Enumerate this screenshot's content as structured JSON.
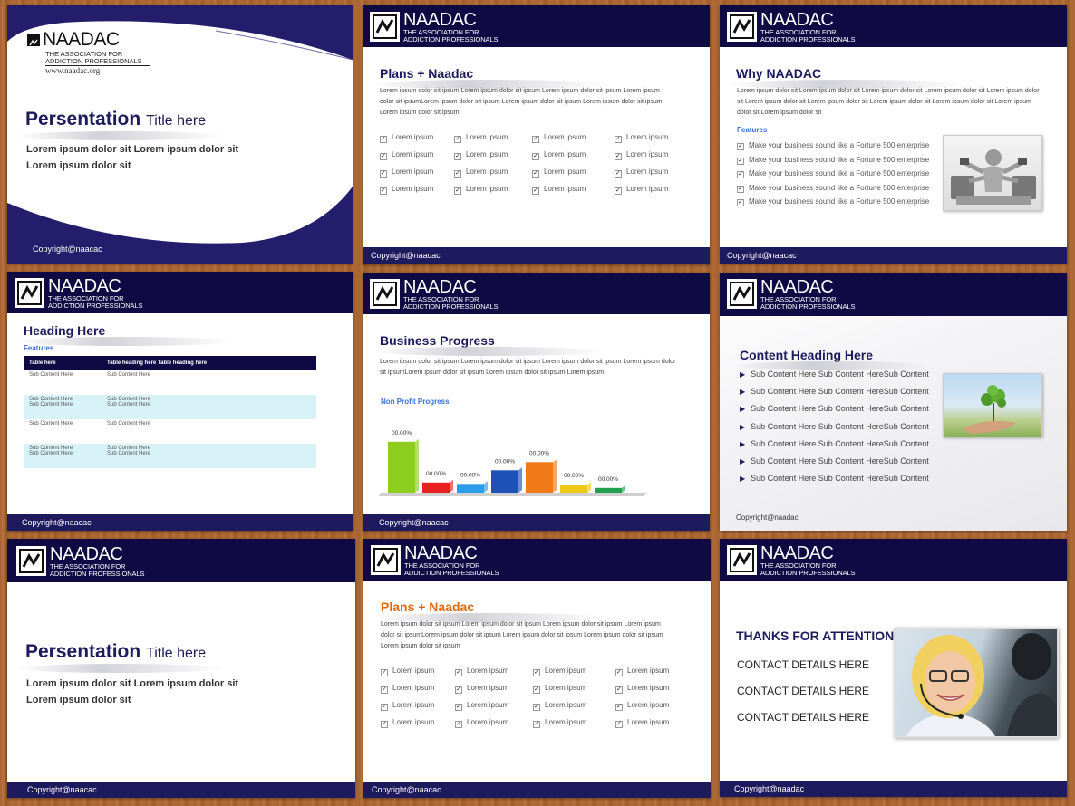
{
  "brand": {
    "name": "NAADAC",
    "tagline_1": "THE ASSOCIATION FOR",
    "tagline_2": "ADDICTION PROFESSIONALS",
    "website": "www.naadac.org"
  },
  "copyright": "Copyright@naacac",
  "copyright_alt": "Copyright@naadac",
  "colors": {
    "navy": "#0f0a44",
    "footer": "#1e1a5e",
    "orange": "#e06a10",
    "accent_blue": "#3a6fd8"
  },
  "slide1": {
    "title_bold": "Persentation",
    "title_rest": "Title here",
    "line1": "Lorem ipsum dolor sit  Lorem ipsum dolor sit",
    "line2": "Lorem ipsum dolor sit"
  },
  "slide2": {
    "title": "Plans + Naadac",
    "para": "Lorem ipsum dolor sit ipsum Lorem ipsum dolor sit ipsum Lorem ipsum dolor sit ipsum Lorem ipsum dolor sit ipsumLorem ipsum dolor sit ipsum Lorem ipsum dolor sit ipsum Lorem ipsum dolor sit ipsum Lorem ipsum dolor sit ipsum",
    "item": "Lorem ipsum"
  },
  "slide3": {
    "title": "Why NAADAC",
    "para": "Lorem ipsum dolor sit Lorem ipsum dolor sit  Lorem ipsum dolor sit Lorem ipsum dolor sit Lorem ipsum dolor sit Lorem ipsum dolor sit  Lorem ipsum dolor sit Lorem ipsum dolor sit Lorem ipsum dolor sit Lorem ipsum dolor sit  Lorem ipsum dolor sit",
    "features": "Features",
    "feature_item": "Make your business sound like a Fortune 500 enterprise"
  },
  "slide4": {
    "title": "Heading Here",
    "features": "Features",
    "th1": "Table here",
    "th2": "Table heading here Table heading here",
    "cell": "Sub Content Here"
  },
  "slide5": {
    "title": "Business Progress",
    "para": "Lorem ipsum dolor sit ipsum Lorem ipsum dolor sit ipsum Lorem ipsum dolor sit ipsum Lorem ipsum dolor sit ipsumLorem ipsum dolor sit ipsum Lorem ipsum dolor sit ipsum Lorem ipsum",
    "chart_title": "Non Profit Progress"
  },
  "chart_data": {
    "type": "bar",
    "title": "Non Profit Progress",
    "labels": [
      "00.00%",
      "00.00%",
      "00.00%",
      "00.00%",
      "00.00%",
      "00.00%",
      "00.00%"
    ],
    "values": [
      75,
      15,
      13,
      33,
      45,
      12,
      7
    ],
    "colors": [
      "#8ccd1e",
      "#e82020",
      "#2c9de8",
      "#1e52b8",
      "#f07a18",
      "#f0c818",
      "#20a050"
    ]
  },
  "slide6": {
    "title": "Content Heading Here",
    "item": "Sub Content Here Sub Content HereSub Content",
    "copyright": "Copyright@naadac"
  },
  "slide7": {
    "title_bold": "Persentation",
    "title_rest": "Title here",
    "line1": "Lorem ipsum dolor sit  Lorem ipsum dolor sit",
    "line2": "Lorem ipsum dolor sit"
  },
  "slide8": {
    "title": "Plans + Naadac",
    "para": "Lorem ipsum dolor sit ipsum Lorem ipsum dolor sit ipsum Lorem ipsum dolor sit ipsum Lorem ipsum dolor sit ipsumLorem ipsum dolor sit ipsum Lorem ipsum dolor sit ipsum Lorem ipsum dolor sit ipsum Lorem ipsum dolor sit ipsum",
    "item": "Lorem ipsum"
  },
  "slide9": {
    "title": "THANKS FOR ATTENTION",
    "contact": "CONTACT DETAILS HERE"
  }
}
